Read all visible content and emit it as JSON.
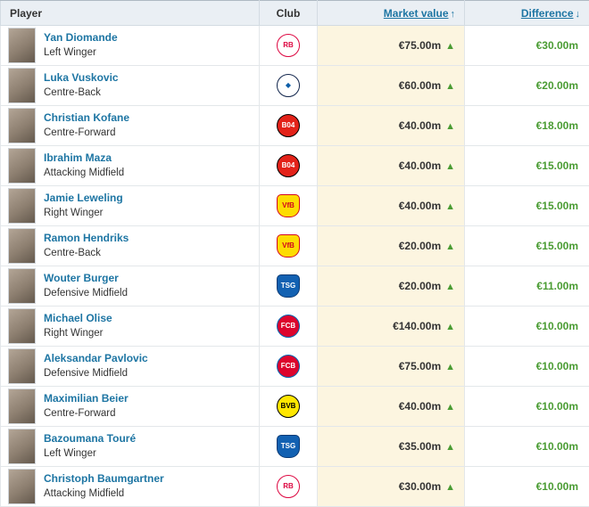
{
  "header": {
    "player": "Player",
    "club": "Club",
    "market_value": "Market value",
    "market_value_sort": "↑",
    "difference": "Difference",
    "difference_sort": "↓"
  },
  "icons": {
    "increase_arrow": "▲"
  },
  "colors": {
    "link_blue": "#1d75a3",
    "value_bg": "#fcf5e0",
    "positive_green": "#4a9c33"
  },
  "clubs": {
    "rb-leipzig": {
      "name": "RB Leipzig",
      "text": "RB",
      "bg": "#ffffff",
      "fg": "#dd0741",
      "border": "#dd0741",
      "shape": "circle"
    },
    "hamburg": {
      "name": "Hamburger SV",
      "text": "◆",
      "bg": "#ffffff",
      "fg": "#0b5ea8",
      "border": "#11254c",
      "shape": "circle"
    },
    "leverkusen": {
      "name": "Bayer 04 Leverkusen",
      "text": "B04",
      "bg": "#e32219",
      "fg": "#ffffff",
      "border": "#000000",
      "shape": "circle"
    },
    "stuttgart": {
      "name": "VfB Stuttgart",
      "text": "VfB",
      "bg": "#fddc02",
      "fg": "#d3071d",
      "border": "#d3071d",
      "shape": "shield"
    },
    "hoffenheim": {
      "name": "TSG Hoffenheim",
      "text": "TSG",
      "bg": "#1261b2",
      "fg": "#ffffff",
      "border": "#0a3a75",
      "shape": "shield"
    },
    "bayern": {
      "name": "Bayern Munich",
      "text": "FCB",
      "bg": "#dc052d",
      "fg": "#ffffff",
      "border": "#0066b2",
      "shape": "circle"
    },
    "dortmund": {
      "name": "Borussia Dortmund",
      "text": "BVB",
      "bg": "#ffe600",
      "fg": "#000000",
      "border": "#000000",
      "shape": "circle"
    }
  },
  "rows": [
    {
      "name": "Yan Diomande",
      "position": "Left Winger",
      "club_key": "rb-leipzig",
      "market_value": "€75.00m",
      "difference": "€30.00m"
    },
    {
      "name": "Luka Vuskovic",
      "position": "Centre-Back",
      "club_key": "hamburg",
      "market_value": "€60.00m",
      "difference": "€20.00m"
    },
    {
      "name": "Christian Kofane",
      "position": "Centre-Forward",
      "club_key": "leverkusen",
      "market_value": "€40.00m",
      "difference": "€18.00m"
    },
    {
      "name": "Ibrahim Maza",
      "position": "Attacking Midfield",
      "club_key": "leverkusen",
      "market_value": "€40.00m",
      "difference": "€15.00m"
    },
    {
      "name": "Jamie Leweling",
      "position": "Right Winger",
      "club_key": "stuttgart",
      "market_value": "€40.00m",
      "difference": "€15.00m"
    },
    {
      "name": "Ramon Hendriks",
      "position": "Centre-Back",
      "club_key": "stuttgart",
      "market_value": "€20.00m",
      "difference": "€15.00m"
    },
    {
      "name": "Wouter Burger",
      "position": "Defensive Midfield",
      "club_key": "hoffenheim",
      "market_value": "€20.00m",
      "difference": "€11.00m"
    },
    {
      "name": "Michael Olise",
      "position": "Right Winger",
      "club_key": "bayern",
      "market_value": "€140.00m",
      "difference": "€10.00m"
    },
    {
      "name": "Aleksandar Pavlovic",
      "position": "Defensive Midfield",
      "club_key": "bayern",
      "market_value": "€75.00m",
      "difference": "€10.00m"
    },
    {
      "name": "Maximilian Beier",
      "position": "Centre-Forward",
      "club_key": "dortmund",
      "market_value": "€40.00m",
      "difference": "€10.00m"
    },
    {
      "name": "Bazoumana Touré",
      "position": "Left Winger",
      "club_key": "hoffenheim",
      "market_value": "€35.00m",
      "difference": "€10.00m"
    },
    {
      "name": "Christoph Baumgartner",
      "position": "Attacking Midfield",
      "club_key": "rb-leipzig",
      "market_value": "€30.00m",
      "difference": "€10.00m"
    }
  ]
}
